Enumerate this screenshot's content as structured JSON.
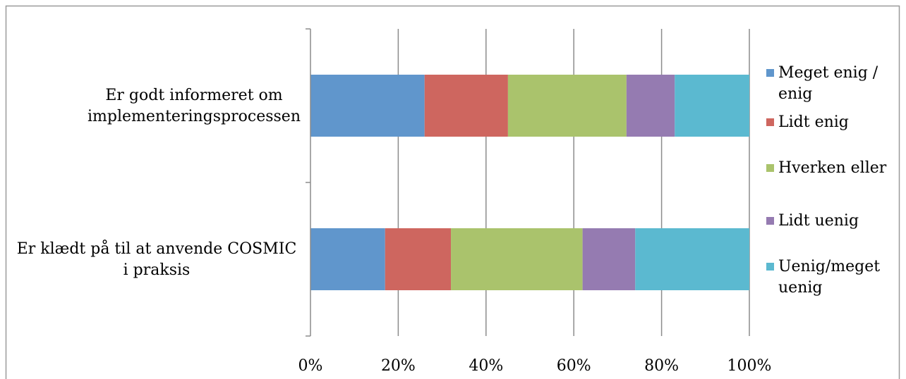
{
  "chart_data": {
    "type": "bar",
    "orientation": "horizontal",
    "stacked": "percent",
    "categories": [
      [
        "Er godt informeret om",
        "implementeringsprocessen"
      ],
      [
        "Er klædt  på til at anvende COSMIC",
        "i praksis"
      ]
    ],
    "series": [
      {
        "name": [
          "Meget enig /",
          "enig"
        ],
        "color": "#6096CC",
        "values": [
          26,
          17
        ]
      },
      {
        "name": [
          "Lidt enig"
        ],
        "color": "#CE665F",
        "values": [
          19,
          15
        ]
      },
      {
        "name": [
          "Hverken eller"
        ],
        "color": "#AAC36C",
        "values": [
          27,
          30
        ]
      },
      {
        "name": [
          "Lidt uenig"
        ],
        "color": "#957BB1",
        "values": [
          11,
          12
        ]
      },
      {
        "name": [
          "Uenig/meget",
          "uenig"
        ],
        "color": "#5BB9D0",
        "values": [
          17,
          26
        ]
      }
    ],
    "xlim": [
      0,
      100
    ],
    "xticks": [
      0,
      20,
      40,
      60,
      80,
      100
    ],
    "xtick_labels": [
      "0%",
      "20%",
      "40%",
      "60%",
      "80%",
      "100%"
    ],
    "grid": "vertical",
    "legend_position": "right"
  }
}
